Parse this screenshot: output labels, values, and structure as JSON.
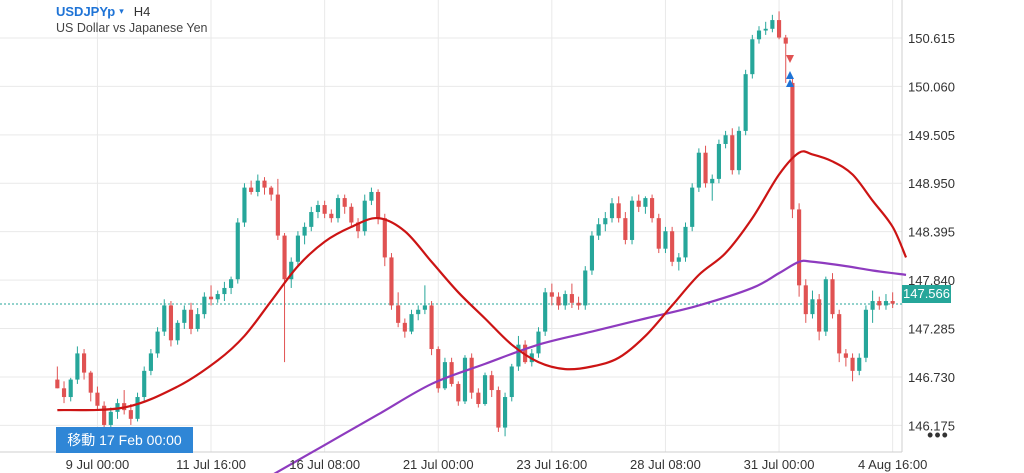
{
  "header": {
    "symbol": "USDJPYp",
    "caret": "▾",
    "timeframe": "H4",
    "description": "US Dollar vs Japanese Yen"
  },
  "goto_label": "移動 17 Feb 00:00",
  "more_label": "•••",
  "current_price_label": "147.566",
  "colors": {
    "up": "#26a69a",
    "down": "#e05252",
    "ma_fast": "#cc1414",
    "ma_slow": "#8e3bbf",
    "grid": "#e9e9e9",
    "price_line": "#26a69a",
    "accent": "#2f86d6"
  },
  "chart_data": {
    "type": "candlestick",
    "ylim": [
      145.87,
      151.05
    ],
    "y_ticks": [
      "150.615",
      "150.060",
      "149.505",
      "148.950",
      "148.395",
      "147.840",
      "147.285",
      "146.730",
      "146.175"
    ],
    "x_ticks": [
      "9 Jul 00:00",
      "11 Jul 16:00",
      "16 Jul 08:00",
      "21 Jul 00:00",
      "23 Jul 16:00",
      "28 Jul 08:00",
      "31 Jul 00:00",
      "4 Aug 16:00"
    ],
    "current_price": 147.566,
    "grid": true,
    "candles": [
      [
        146.7,
        146.85,
        146.6,
        146.6
      ],
      [
        146.6,
        146.68,
        146.43,
        146.5
      ],
      [
        146.5,
        146.72,
        146.45,
        146.7
      ],
      [
        146.7,
        147.08,
        146.65,
        147.0
      ],
      [
        147.0,
        147.05,
        146.7,
        146.78
      ],
      [
        146.78,
        146.8,
        146.45,
        146.55
      ],
      [
        146.55,
        146.62,
        146.35,
        146.4
      ],
      [
        146.4,
        146.45,
        146.1,
        146.18
      ],
      [
        146.18,
        146.38,
        146.08,
        146.33
      ],
      [
        146.33,
        146.48,
        146.25,
        146.43
      ],
      [
        146.43,
        146.58,
        146.3,
        146.35
      ],
      [
        146.35,
        146.42,
        146.18,
        146.25
      ],
      [
        146.25,
        146.55,
        146.22,
        146.5
      ],
      [
        146.5,
        146.85,
        146.45,
        146.8
      ],
      [
        146.8,
        147.05,
        146.75,
        147.0
      ],
      [
        147.0,
        147.3,
        146.95,
        147.25
      ],
      [
        147.25,
        147.62,
        147.2,
        147.55
      ],
      [
        147.55,
        147.6,
        147.08,
        147.15
      ],
      [
        147.15,
        147.38,
        147.1,
        147.35
      ],
      [
        147.35,
        147.55,
        147.28,
        147.5
      ],
      [
        147.5,
        147.58,
        147.22,
        147.28
      ],
      [
        147.28,
        147.52,
        147.25,
        147.45
      ],
      [
        147.45,
        147.7,
        147.4,
        147.65
      ],
      [
        147.65,
        147.78,
        147.55,
        147.62
      ],
      [
        147.62,
        147.72,
        147.58,
        147.68
      ],
      [
        147.68,
        147.82,
        147.6,
        147.75
      ],
      [
        147.75,
        147.88,
        147.68,
        147.85
      ],
      [
        147.85,
        148.55,
        147.8,
        148.5
      ],
      [
        148.5,
        148.95,
        148.45,
        148.9
      ],
      [
        148.9,
        148.98,
        148.82,
        148.85
      ],
      [
        148.85,
        149.05,
        148.8,
        148.98
      ],
      [
        148.98,
        149.02,
        148.82,
        148.9
      ],
      [
        148.9,
        148.92,
        148.75,
        148.82
      ],
      [
        148.82,
        149.0,
        148.3,
        148.35
      ],
      [
        148.35,
        148.38,
        146.9,
        147.85
      ],
      [
        147.85,
        148.1,
        147.75,
        148.05
      ],
      [
        148.05,
        148.4,
        148.0,
        148.35
      ],
      [
        148.35,
        148.5,
        148.25,
        148.45
      ],
      [
        148.45,
        148.68,
        148.4,
        148.62
      ],
      [
        148.62,
        148.75,
        148.55,
        148.7
      ],
      [
        148.7,
        148.75,
        148.55,
        148.6
      ],
      [
        148.6,
        148.65,
        148.5,
        148.55
      ],
      [
        148.55,
        148.82,
        148.5,
        148.78
      ],
      [
        148.78,
        148.82,
        148.6,
        148.68
      ],
      [
        148.68,
        148.72,
        148.45,
        148.5
      ],
      [
        148.5,
        148.55,
        148.32,
        148.4
      ],
      [
        148.4,
        148.82,
        148.35,
        148.75
      ],
      [
        148.75,
        148.9,
        148.7,
        148.85
      ],
      [
        148.85,
        148.88,
        148.48,
        148.55
      ],
      [
        148.55,
        148.6,
        148.0,
        148.1
      ],
      [
        148.1,
        148.15,
        147.5,
        147.55
      ],
      [
        147.55,
        147.7,
        147.3,
        147.35
      ],
      [
        147.35,
        147.4,
        147.18,
        147.25
      ],
      [
        147.25,
        147.5,
        147.22,
        147.45
      ],
      [
        147.45,
        147.55,
        147.38,
        147.5
      ],
      [
        147.5,
        147.78,
        147.45,
        147.55
      ],
      [
        147.55,
        147.6,
        146.98,
        147.05
      ],
      [
        147.05,
        147.08,
        146.55,
        146.6
      ],
      [
        146.6,
        146.95,
        146.58,
        146.9
      ],
      [
        146.9,
        146.95,
        146.62,
        146.65
      ],
      [
        146.65,
        146.68,
        146.4,
        146.45
      ],
      [
        146.45,
        146.98,
        146.42,
        146.95
      ],
      [
        146.95,
        147.0,
        146.48,
        146.55
      ],
      [
        146.55,
        146.6,
        146.38,
        146.42
      ],
      [
        146.42,
        146.78,
        146.4,
        146.75
      ],
      [
        146.75,
        146.8,
        146.5,
        146.58
      ],
      [
        146.58,
        146.62,
        146.1,
        146.15
      ],
      [
        146.15,
        146.55,
        146.05,
        146.5
      ],
      [
        146.5,
        146.88,
        146.45,
        146.85
      ],
      [
        146.85,
        147.2,
        146.8,
        147.1
      ],
      [
        147.1,
        147.15,
        146.88,
        146.9
      ],
      [
        146.9,
        147.05,
        146.85,
        147.0
      ],
      [
        147.0,
        147.3,
        146.95,
        147.25
      ],
      [
        147.25,
        147.75,
        147.2,
        147.7
      ],
      [
        147.7,
        147.8,
        147.55,
        147.65
      ],
      [
        147.65,
        147.7,
        147.5,
        147.55
      ],
      [
        147.55,
        147.72,
        147.5,
        147.68
      ],
      [
        147.68,
        147.8,
        147.52,
        147.58
      ],
      [
        147.58,
        147.65,
        147.5,
        147.55
      ],
      [
        147.55,
        148.0,
        147.5,
        147.95
      ],
      [
        147.95,
        148.4,
        147.9,
        148.35
      ],
      [
        148.35,
        148.55,
        148.3,
        148.48
      ],
      [
        148.48,
        148.62,
        148.4,
        148.55
      ],
      [
        148.55,
        148.78,
        148.5,
        148.72
      ],
      [
        148.72,
        148.8,
        148.5,
        148.55
      ],
      [
        148.55,
        148.62,
        148.25,
        148.3
      ],
      [
        148.3,
        148.8,
        148.25,
        148.75
      ],
      [
        148.75,
        148.82,
        148.62,
        148.68
      ],
      [
        148.68,
        148.8,
        148.6,
        148.78
      ],
      [
        148.78,
        148.82,
        148.5,
        148.55
      ],
      [
        148.55,
        148.6,
        148.15,
        148.2
      ],
      [
        148.2,
        148.45,
        148.15,
        148.4
      ],
      [
        148.4,
        148.45,
        148.0,
        148.05
      ],
      [
        148.05,
        148.15,
        147.95,
        148.1
      ],
      [
        148.1,
        148.5,
        148.05,
        148.45
      ],
      [
        148.45,
        148.95,
        148.4,
        148.9
      ],
      [
        148.9,
        149.35,
        148.85,
        149.3
      ],
      [
        149.3,
        149.38,
        148.9,
        148.95
      ],
      [
        148.95,
        149.05,
        148.75,
        149.0
      ],
      [
        149.0,
        149.45,
        148.95,
        149.4
      ],
      [
        149.4,
        149.55,
        149.35,
        149.5
      ],
      [
        149.5,
        149.58,
        149.05,
        149.1
      ],
      [
        149.1,
        149.6,
        149.05,
        149.55
      ],
      [
        149.55,
        150.25,
        149.5,
        150.2
      ],
      [
        150.2,
        150.65,
        150.15,
        150.6
      ],
      [
        150.6,
        150.75,
        150.55,
        150.7
      ],
      [
        150.7,
        150.8,
        150.65,
        150.72
      ],
      [
        150.72,
        150.88,
        150.68,
        150.82
      ],
      [
        150.82,
        150.92,
        150.6,
        150.62
      ],
      [
        150.62,
        150.65,
        150.1,
        150.55
      ],
      [
        150.1,
        150.15,
        148.55,
        148.65
      ],
      [
        148.65,
        148.72,
        147.65,
        147.78
      ],
      [
        147.78,
        147.85,
        147.35,
        147.45
      ],
      [
        147.45,
        147.72,
        147.4,
        147.62
      ],
      [
        147.62,
        147.68,
        147.15,
        147.25
      ],
      [
        147.25,
        147.88,
        147.2,
        147.85
      ],
      [
        147.85,
        147.92,
        147.4,
        147.45
      ],
      [
        147.45,
        147.5,
        146.9,
        147.0
      ],
      [
        147.0,
        147.05,
        146.85,
        146.95
      ],
      [
        146.95,
        147.0,
        146.68,
        146.8
      ],
      [
        146.8,
        147.0,
        146.75,
        146.95
      ],
      [
        146.95,
        147.55,
        146.9,
        147.5
      ],
      [
        147.5,
        147.72,
        147.35,
        147.6
      ],
      [
        147.6,
        147.65,
        147.5,
        147.55
      ],
      [
        147.55,
        147.68,
        147.5,
        147.6
      ],
      [
        147.6,
        147.7,
        147.52,
        147.57
      ]
    ],
    "ma_fast": [
      [
        0,
        146.35
      ],
      [
        10,
        146.38
      ],
      [
        18,
        146.62
      ],
      [
        24,
        146.92
      ],
      [
        28,
        147.2
      ],
      [
        32,
        147.6
      ],
      [
        36,
        148.0
      ],
      [
        40,
        148.28
      ],
      [
        44,
        148.45
      ],
      [
        48,
        148.55
      ],
      [
        52,
        148.4
      ],
      [
        56,
        148.05
      ],
      [
        60,
        147.7
      ],
      [
        64,
        147.4
      ],
      [
        68,
        147.1
      ],
      [
        72,
        146.9
      ],
      [
        76,
        146.82
      ],
      [
        80,
        146.85
      ],
      [
        84,
        146.95
      ],
      [
        88,
        147.2
      ],
      [
        92,
        147.55
      ],
      [
        96,
        147.9
      ],
      [
        100,
        148.15
      ],
      [
        104,
        148.55
      ],
      [
        108,
        149.05
      ],
      [
        111,
        149.3
      ],
      [
        113,
        149.28
      ],
      [
        116,
        149.2
      ],
      [
        119,
        149.05
      ],
      [
        122,
        148.75
      ],
      [
        125,
        148.45
      ],
      [
        127,
        148.1
      ]
    ],
    "ma_slow": [
      [
        32,
        145.6
      ],
      [
        40,
        145.95
      ],
      [
        48,
        146.3
      ],
      [
        56,
        146.65
      ],
      [
        64,
        146.88
      ],
      [
        72,
        147.1
      ],
      [
        80,
        147.25
      ],
      [
        88,
        147.4
      ],
      [
        96,
        147.55
      ],
      [
        104,
        147.75
      ],
      [
        108,
        147.92
      ],
      [
        111,
        148.05
      ],
      [
        113,
        148.05
      ],
      [
        118,
        148.0
      ],
      [
        122,
        147.95
      ],
      [
        127,
        147.9
      ]
    ]
  }
}
